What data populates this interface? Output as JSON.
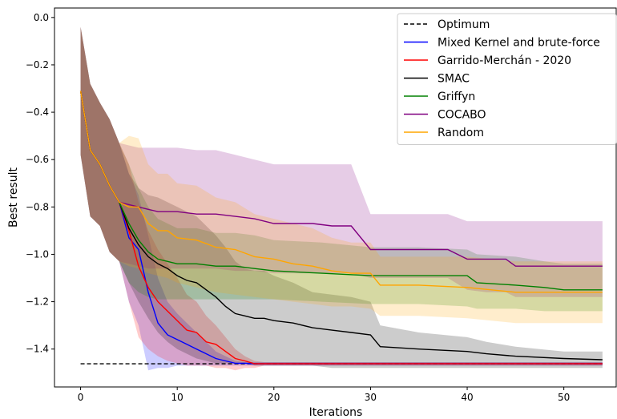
{
  "chart_data": {
    "type": "line",
    "title": "",
    "xlabel": "Iterations",
    "ylabel": "Best result",
    "xlim": [
      -2.7,
      55.5
    ],
    "ylim": [
      -1.56,
      0.04
    ],
    "xticks": [
      0,
      10,
      20,
      30,
      40,
      50
    ],
    "yticks": [
      0.0,
      -0.2,
      -0.4,
      -0.6,
      -0.8,
      -1.0,
      -1.2,
      -1.4
    ],
    "ytick_labels": [
      "0.0",
      "−0.2",
      "−0.4",
      "−0.6",
      "−0.8",
      "−1.0",
      "−1.2",
      "−1.4"
    ],
    "grid": false,
    "legend_position": "top-right",
    "optimum": {
      "name": "Optimum",
      "color": "#000000",
      "value": -1.462,
      "x_range": [
        0,
        54
      ]
    },
    "series": [
      {
        "name": "Mixed Kernel and brute-force",
        "color": "#0000ff",
        "x": [
          0,
          1,
          2,
          3,
          4,
          5,
          6,
          7,
          8,
          9,
          10,
          11,
          12,
          13,
          14,
          15,
          16,
          17,
          18,
          19,
          20,
          25,
          30,
          35,
          40,
          45,
          50,
          54
        ],
        "mean": [
          -0.31,
          -0.56,
          -0.62,
          -0.71,
          -0.78,
          -0.93,
          -0.98,
          -1.16,
          -1.29,
          -1.34,
          -1.36,
          -1.38,
          -1.4,
          -1.42,
          -1.44,
          -1.45,
          -1.46,
          -1.46,
          -1.462,
          -1.462,
          -1.462,
          -1.462,
          -1.462,
          -1.462,
          -1.462,
          -1.462,
          -1.462,
          -1.462
        ],
        "lower": [
          -0.58,
          -0.84,
          -0.88,
          -0.99,
          -1.03,
          -1.2,
          -1.3,
          -1.49,
          -1.48,
          -1.48,
          -1.47,
          -1.47,
          -1.47,
          -1.47,
          -1.47,
          -1.47,
          -1.47,
          -1.47,
          -1.47,
          -1.47,
          -1.47,
          -1.47,
          -1.47,
          -1.47,
          -1.47,
          -1.47,
          -1.47,
          -1.47
        ],
        "upper": [
          -0.04,
          -0.28,
          -0.36,
          -0.43,
          -0.53,
          -0.66,
          -0.75,
          -0.92,
          -1.1,
          -1.2,
          -1.25,
          -1.29,
          -1.33,
          -1.37,
          -1.41,
          -1.43,
          -1.45,
          -1.455,
          -1.455,
          -1.455,
          -1.455,
          -1.455,
          -1.455,
          -1.455,
          -1.455,
          -1.455,
          -1.455,
          -1.455
        ]
      },
      {
        "name": "Garrido-Merchán - 2020",
        "color": "#ff0000",
        "x": [
          0,
          1,
          2,
          3,
          4,
          5,
          6,
          7,
          8,
          9,
          10,
          11,
          12,
          13,
          14,
          15,
          16,
          17,
          18,
          19,
          20,
          25,
          30,
          35,
          40,
          45,
          50,
          54
        ],
        "mean": [
          -0.31,
          -0.56,
          -0.62,
          -0.71,
          -0.78,
          -0.9,
          -1.05,
          -1.14,
          -1.2,
          -1.24,
          -1.28,
          -1.32,
          -1.33,
          -1.37,
          -1.38,
          -1.41,
          -1.44,
          -1.45,
          -1.462,
          -1.462,
          -1.462,
          -1.462,
          -1.462,
          -1.462,
          -1.462,
          -1.462,
          -1.462,
          -1.462
        ],
        "lower": [
          -0.58,
          -0.84,
          -0.88,
          -0.99,
          -1.03,
          -1.2,
          -1.35,
          -1.4,
          -1.43,
          -1.45,
          -1.46,
          -1.47,
          -1.47,
          -1.47,
          -1.48,
          -1.48,
          -1.49,
          -1.48,
          -1.48,
          -1.47,
          -1.47,
          -1.47,
          -1.47,
          -1.47,
          -1.47,
          -1.47,
          -1.47,
          -1.47
        ],
        "upper": [
          -0.04,
          -0.28,
          -0.36,
          -0.43,
          -0.53,
          -0.62,
          -0.78,
          -0.9,
          -0.98,
          -1.04,
          -1.1,
          -1.17,
          -1.2,
          -1.26,
          -1.3,
          -1.35,
          -1.4,
          -1.43,
          -1.45,
          -1.455,
          -1.455,
          -1.455,
          -1.455,
          -1.455,
          -1.455,
          -1.455,
          -1.455,
          -1.455
        ]
      },
      {
        "name": "SMAC",
        "color": "#000000",
        "x": [
          0,
          1,
          2,
          3,
          4,
          5,
          6,
          7,
          8,
          9,
          10,
          11,
          12,
          13,
          14,
          15,
          16,
          17,
          18,
          19,
          20,
          22,
          24,
          26,
          28,
          30,
          31,
          35,
          40,
          42,
          45,
          50,
          54
        ],
        "mean": [
          -0.31,
          -0.56,
          -0.62,
          -0.71,
          -0.78,
          -0.89,
          -0.96,
          -1.01,
          -1.04,
          -1.06,
          -1.09,
          -1.11,
          -1.12,
          -1.15,
          -1.18,
          -1.22,
          -1.25,
          -1.26,
          -1.27,
          -1.27,
          -1.28,
          -1.29,
          -1.31,
          -1.32,
          -1.33,
          -1.34,
          -1.39,
          -1.4,
          -1.41,
          -1.42,
          -1.43,
          -1.44,
          -1.445
        ],
        "lower": [
          -0.58,
          -0.84,
          -0.88,
          -0.99,
          -1.03,
          -1.12,
          -1.2,
          -1.27,
          -1.33,
          -1.37,
          -1.4,
          -1.42,
          -1.44,
          -1.45,
          -1.46,
          -1.46,
          -1.46,
          -1.46,
          -1.47,
          -1.47,
          -1.47,
          -1.47,
          -1.47,
          -1.48,
          -1.48,
          -1.48,
          -1.48,
          -1.48,
          -1.48,
          -1.48,
          -1.48,
          -1.48,
          -1.48
        ],
        "upper": [
          -0.04,
          -0.28,
          -0.36,
          -0.43,
          -0.53,
          -0.66,
          -0.72,
          -0.75,
          -0.76,
          -0.78,
          -0.8,
          -0.82,
          -0.84,
          -0.88,
          -0.92,
          -0.97,
          -1.03,
          -1.06,
          -1.07,
          -1.07,
          -1.09,
          -1.12,
          -1.16,
          -1.17,
          -1.18,
          -1.2,
          -1.3,
          -1.33,
          -1.35,
          -1.37,
          -1.39,
          -1.41,
          -1.41
        ]
      },
      {
        "name": "Griffyn",
        "color": "#008000",
        "x": [
          0,
          1,
          2,
          3,
          4,
          5,
          6,
          7,
          8,
          9,
          10,
          12,
          14,
          16,
          18,
          20,
          25,
          30,
          35,
          40,
          41,
          45,
          48,
          50,
          54
        ],
        "mean": [
          -0.31,
          -0.56,
          -0.62,
          -0.71,
          -0.78,
          -0.87,
          -0.94,
          -0.99,
          -1.02,
          -1.03,
          -1.04,
          -1.04,
          -1.05,
          -1.05,
          -1.06,
          -1.07,
          -1.08,
          -1.09,
          -1.09,
          -1.09,
          -1.12,
          -1.13,
          -1.14,
          -1.15,
          -1.15
        ],
        "lower": [
          -0.58,
          -0.84,
          -0.88,
          -0.99,
          -1.03,
          -1.12,
          -1.16,
          -1.18,
          -1.19,
          -1.19,
          -1.19,
          -1.19,
          -1.19,
          -1.19,
          -1.19,
          -1.19,
          -1.2,
          -1.21,
          -1.21,
          -1.22,
          -1.23,
          -1.23,
          -1.24,
          -1.24,
          -1.24
        ],
        "upper": [
          -0.04,
          -0.28,
          -0.36,
          -0.43,
          -0.53,
          -0.62,
          -0.72,
          -0.8,
          -0.85,
          -0.87,
          -0.89,
          -0.89,
          -0.91,
          -0.91,
          -0.92,
          -0.94,
          -0.95,
          -0.97,
          -0.97,
          -0.98,
          -1.0,
          -1.01,
          -1.03,
          -1.04,
          -1.04
        ]
      },
      {
        "name": "COCABO",
        "color": "#800080",
        "x": [
          0,
          1,
          2,
          3,
          4,
          5,
          6,
          7,
          8,
          9,
          10,
          12,
          14,
          16,
          18,
          20,
          22,
          24,
          26,
          28,
          30,
          32,
          35,
          38,
          40,
          42,
          44,
          45,
          48,
          50,
          54
        ],
        "mean": [
          -0.31,
          -0.56,
          -0.62,
          -0.71,
          -0.78,
          -0.79,
          -0.8,
          -0.81,
          -0.82,
          -0.82,
          -0.82,
          -0.83,
          -0.83,
          -0.84,
          -0.85,
          -0.87,
          -0.87,
          -0.87,
          -0.88,
          -0.88,
          -0.98,
          -0.98,
          -0.98,
          -0.98,
          -1.02,
          -1.02,
          -1.02,
          -1.05,
          -1.05,
          -1.05,
          -1.05
        ],
        "lower": [
          -0.58,
          -0.84,
          -0.88,
          -0.99,
          -1.03,
          -1.04,
          -1.05,
          -1.06,
          -1.06,
          -1.06,
          -1.06,
          -1.06,
          -1.06,
          -1.07,
          -1.07,
          -1.08,
          -1.08,
          -1.08,
          -1.08,
          -1.08,
          -1.1,
          -1.1,
          -1.1,
          -1.1,
          -1.15,
          -1.16,
          -1.16,
          -1.18,
          -1.18,
          -1.18,
          -1.18
        ],
        "upper": [
          -0.04,
          -0.28,
          -0.36,
          -0.43,
          -0.53,
          -0.54,
          -0.55,
          -0.55,
          -0.55,
          -0.55,
          -0.55,
          -0.56,
          -0.56,
          -0.58,
          -0.6,
          -0.62,
          -0.62,
          -0.62,
          -0.62,
          -0.62,
          -0.83,
          -0.83,
          -0.83,
          -0.83,
          -0.86,
          -0.86,
          -0.86,
          -0.86,
          -0.86,
          -0.86,
          -0.86
        ]
      },
      {
        "name": "Random",
        "color": "#ffa500",
        "x": [
          0,
          1,
          2,
          3,
          4,
          5,
          6,
          7,
          8,
          9,
          10,
          12,
          14,
          16,
          18,
          20,
          22,
          24,
          26,
          28,
          30,
          31,
          35,
          40,
          45,
          50,
          54
        ],
        "mean": [
          -0.31,
          -0.56,
          -0.62,
          -0.71,
          -0.78,
          -0.8,
          -0.8,
          -0.87,
          -0.9,
          -0.9,
          -0.93,
          -0.94,
          -0.97,
          -0.98,
          -1.01,
          -1.02,
          -1.04,
          -1.05,
          -1.07,
          -1.08,
          -1.08,
          -1.13,
          -1.13,
          -1.14,
          -1.16,
          -1.16,
          -1.16
        ],
        "lower": [
          -0.58,
          -0.84,
          -0.88,
          -0.99,
          -1.03,
          -1.05,
          -1.06,
          -1.08,
          -1.09,
          -1.1,
          -1.12,
          -1.14,
          -1.16,
          -1.17,
          -1.18,
          -1.19,
          -1.2,
          -1.21,
          -1.22,
          -1.22,
          -1.23,
          -1.26,
          -1.26,
          -1.27,
          -1.29,
          -1.29,
          -1.29
        ],
        "upper": [
          -0.04,
          -0.28,
          -0.36,
          -0.43,
          -0.53,
          -0.5,
          -0.51,
          -0.62,
          -0.66,
          -0.66,
          -0.7,
          -0.71,
          -0.76,
          -0.78,
          -0.83,
          -0.85,
          -0.87,
          -0.89,
          -0.93,
          -0.95,
          -0.95,
          -1.01,
          -1.01,
          -1.01,
          -1.03,
          -1.03,
          -1.03
        ]
      }
    ]
  }
}
